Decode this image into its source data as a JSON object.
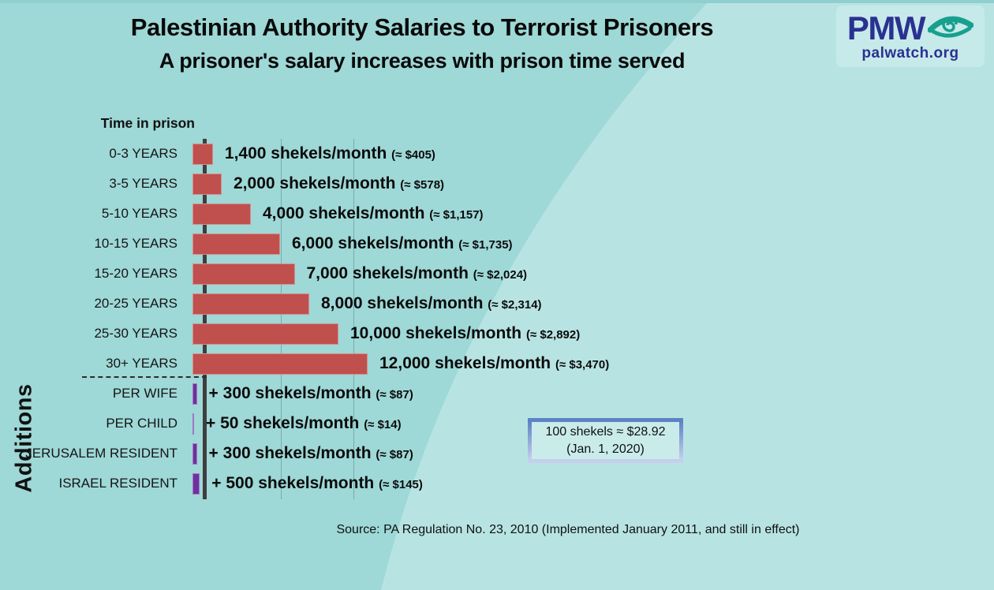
{
  "header": {
    "title": "Palestinian Authority Salaries to Terrorist Prisoners",
    "subtitle": "A prisoner's salary increases with prison time served"
  },
  "logo": {
    "acronym": "PMW",
    "domain": "palwatch.org",
    "icon": "eye-swirl-icon",
    "navy": "#2b3191",
    "teal": "#18a08e"
  },
  "chart_data": {
    "type": "bar",
    "orientation": "horizontal",
    "axis_title": "Time in prison",
    "group2_label": "Additions",
    "unit": "shekels/month",
    "gridline_values": [
      5000,
      10000
    ],
    "xlim": [
      0,
      12000
    ],
    "series": [
      {
        "group": "time",
        "label": "0-3 YEARS",
        "value": 1400,
        "value_label": "1,400 shekels/month",
        "usd_label": "(≈ $405)"
      },
      {
        "group": "time",
        "label": "3-5 YEARS",
        "value": 2000,
        "value_label": "2,000 shekels/month",
        "usd_label": "(≈ $578)"
      },
      {
        "group": "time",
        "label": "5-10 YEARS",
        "value": 4000,
        "value_label": "4,000 shekels/month",
        "usd_label": "(≈ $1,157)"
      },
      {
        "group": "time",
        "label": "10-15 YEARS",
        "value": 6000,
        "value_label": "6,000 shekels/month",
        "usd_label": "(≈ $1,735)"
      },
      {
        "group": "time",
        "label": "15-20 YEARS",
        "value": 7000,
        "value_label": "7,000 shekels/month",
        "usd_label": "(≈ $2,024)"
      },
      {
        "group": "time",
        "label": "20-25 YEARS",
        "value": 8000,
        "value_label": "8,000 shekels/month",
        "usd_label": "(≈ $2,314)"
      },
      {
        "group": "time",
        "label": "25-30 YEARS",
        "value": 10000,
        "value_label": "10,000 shekels/month",
        "usd_label": "(≈ $2,892)"
      },
      {
        "group": "time",
        "label": "30+ YEARS",
        "value": 12000,
        "value_label": "12,000 shekels/month",
        "usd_label": "(≈ $3,470)"
      },
      {
        "group": "additions",
        "label": "PER WIFE",
        "value": 300,
        "value_label": "+ 300 shekels/month",
        "usd_label": "(≈ $87)"
      },
      {
        "group": "additions",
        "label": "PER CHILD",
        "value": 50,
        "value_label": "+ 50 shekels/month",
        "usd_label": "(≈ $14)"
      },
      {
        "group": "additions",
        "label": "JERUSALEM RESIDENT",
        "value": 300,
        "value_label": "+ 300 shekels/month",
        "usd_label": "(≈ $87)"
      },
      {
        "group": "additions",
        "label": "ISRAEL RESIDENT",
        "value": 500,
        "value_label": "+ 500 shekels/month",
        "usd_label": "(≈ $145)"
      }
    ],
    "colors": {
      "time_bar": "#c0504d",
      "additions_bar": "#7030a0",
      "axis": "#3e3e3e",
      "bg_dark": "#9ed8d7",
      "bg_light": "#b7e4e3"
    }
  },
  "note_box": {
    "line1": "100 shekels ≈ $28.92",
    "line2": "(Jan. 1, 2020)"
  },
  "source": "Source: PA Regulation No. 23, 2010 (Implemented January 2011, and still in effect)"
}
